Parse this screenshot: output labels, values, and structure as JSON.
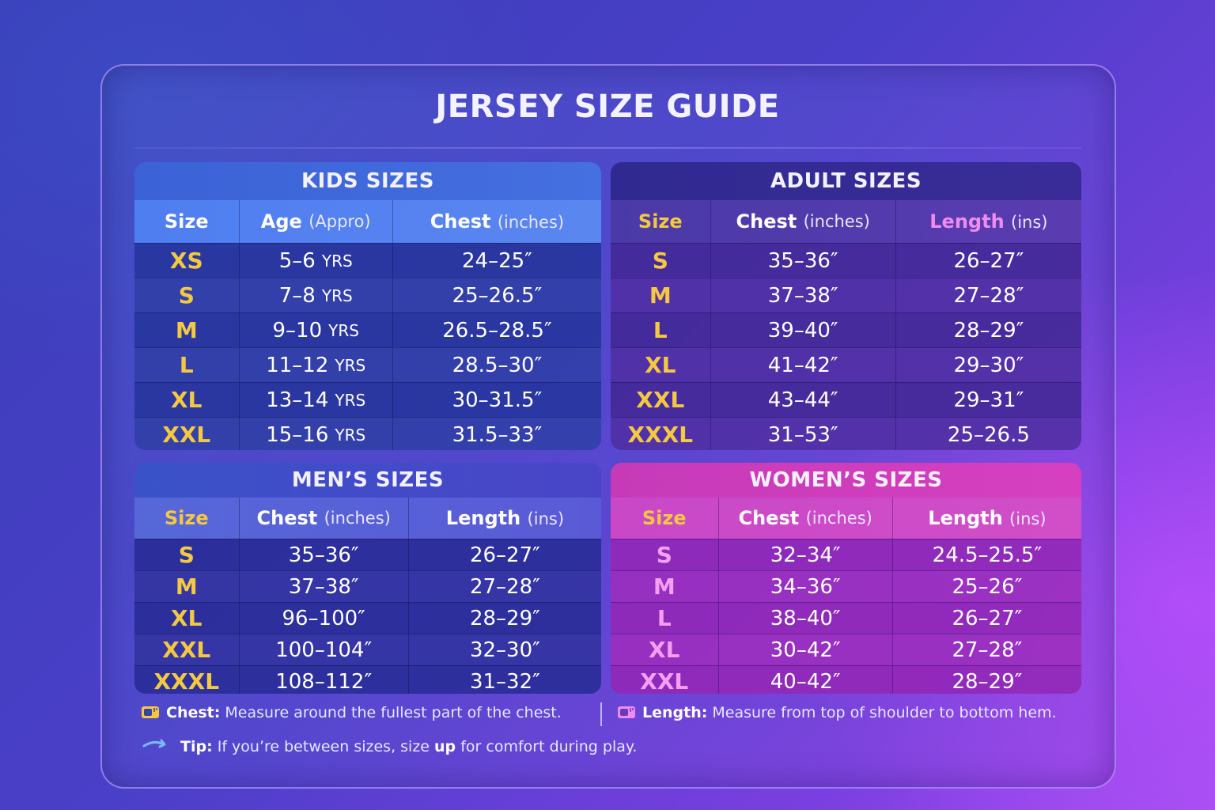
{
  "title": "JERSEY SIZE GUIDE",
  "kids": {
    "heading": "KIDS SIZES",
    "columns": [
      {
        "label": "Size",
        "unit": ""
      },
      {
        "label": "Age",
        "unit": "(Appro)"
      },
      {
        "label": "Chest",
        "unit": "(inches)"
      }
    ],
    "age_suffix": "YRS",
    "rows": [
      {
        "size": "XS",
        "age": "5–6",
        "chest": "24–25″"
      },
      {
        "size": "S",
        "age": "7–8",
        "chest": "25–26.5″"
      },
      {
        "size": "M",
        "age": "9–10",
        "chest": "26.5–28.5″"
      },
      {
        "size": "L",
        "age": "11–12",
        "chest": "28.5–30″"
      },
      {
        "size": "XL",
        "age": "13–14",
        "chest": "30–31.5″"
      },
      {
        "size": "XXL",
        "age": "15–16",
        "chest": "31.5–33″"
      }
    ]
  },
  "adult": {
    "heading": "ADULT SIZES",
    "columns": [
      {
        "label": "Size",
        "unit": ""
      },
      {
        "label": "Chest",
        "unit": "(inches)"
      },
      {
        "label": "Length",
        "unit": "(ins)"
      }
    ],
    "rows": [
      {
        "size": "S",
        "chest": "35–36″",
        "length": "26–27″"
      },
      {
        "size": "M",
        "chest": "37–38″",
        "length": "27–28″"
      },
      {
        "size": "L",
        "chest": "39–40″",
        "length": "28–29″"
      },
      {
        "size": "XL",
        "chest": "41–42″",
        "length": "29–30″"
      },
      {
        "size": "XXL",
        "chest": "43–44″",
        "length": "29–31″"
      },
      {
        "size": "XXXL",
        "chest": "31–53″",
        "length": "25–26.5"
      }
    ]
  },
  "men": {
    "heading": "MEN’S SIZES",
    "columns": [
      {
        "label": "Size",
        "unit": ""
      },
      {
        "label": "Chest",
        "unit": "(inches)"
      },
      {
        "label": "Length",
        "unit": "(ins)"
      }
    ],
    "rows": [
      {
        "size": "S",
        "chest": "35–36″",
        "length": "26–27″"
      },
      {
        "size": "M",
        "chest": "37–38″",
        "length": "27–28″"
      },
      {
        "size": "XL",
        "chest": "96–100″",
        "length": "28–29″"
      },
      {
        "size": "XXL",
        "chest": "100–104″",
        "length": "32–30″"
      },
      {
        "size": "XXXL",
        "chest": "108–112″",
        "length": "31–32″"
      }
    ]
  },
  "women": {
    "heading": "WOMEN’S SIZES",
    "columns": [
      {
        "label": "Size",
        "unit": ""
      },
      {
        "label": "Chest",
        "unit": "(inches)"
      },
      {
        "label": "Length",
        "unit": "(ins)"
      }
    ],
    "rows": [
      {
        "size": "S",
        "chest": "32–34″",
        "length": "24.5–25.5″"
      },
      {
        "size": "M",
        "chest": "34–36″",
        "length": "25–26″"
      },
      {
        "size": "L",
        "chest": "38–40″",
        "length": "26–27″"
      },
      {
        "size": "XL",
        "chest": "30–42″",
        "length": "27–28″"
      },
      {
        "size": "XXL",
        "chest": "40–42″",
        "length": "28–29″"
      }
    ]
  },
  "notes": {
    "chest_label": "Chest:",
    "chest_text": "Measure around the fullest part of the chest.",
    "length_label": "Length:",
    "length_text": "Measure from top of shoulder to bottom hem.",
    "tip_label": "Tip:",
    "tip_text_before": "If you’re between sizes, size",
    "tip_emphasis": "up",
    "tip_text_after": "for comfort during play."
  },
  "colors": {
    "size_highlight": "#f5c842",
    "women_size": "#f4a0f0",
    "length_header_adult": "#f08cf0"
  },
  "icons": {
    "chest": "measuring-tape-icon",
    "length": "measuring-tape-icon",
    "tip": "swoosh-arrow-icon"
  }
}
